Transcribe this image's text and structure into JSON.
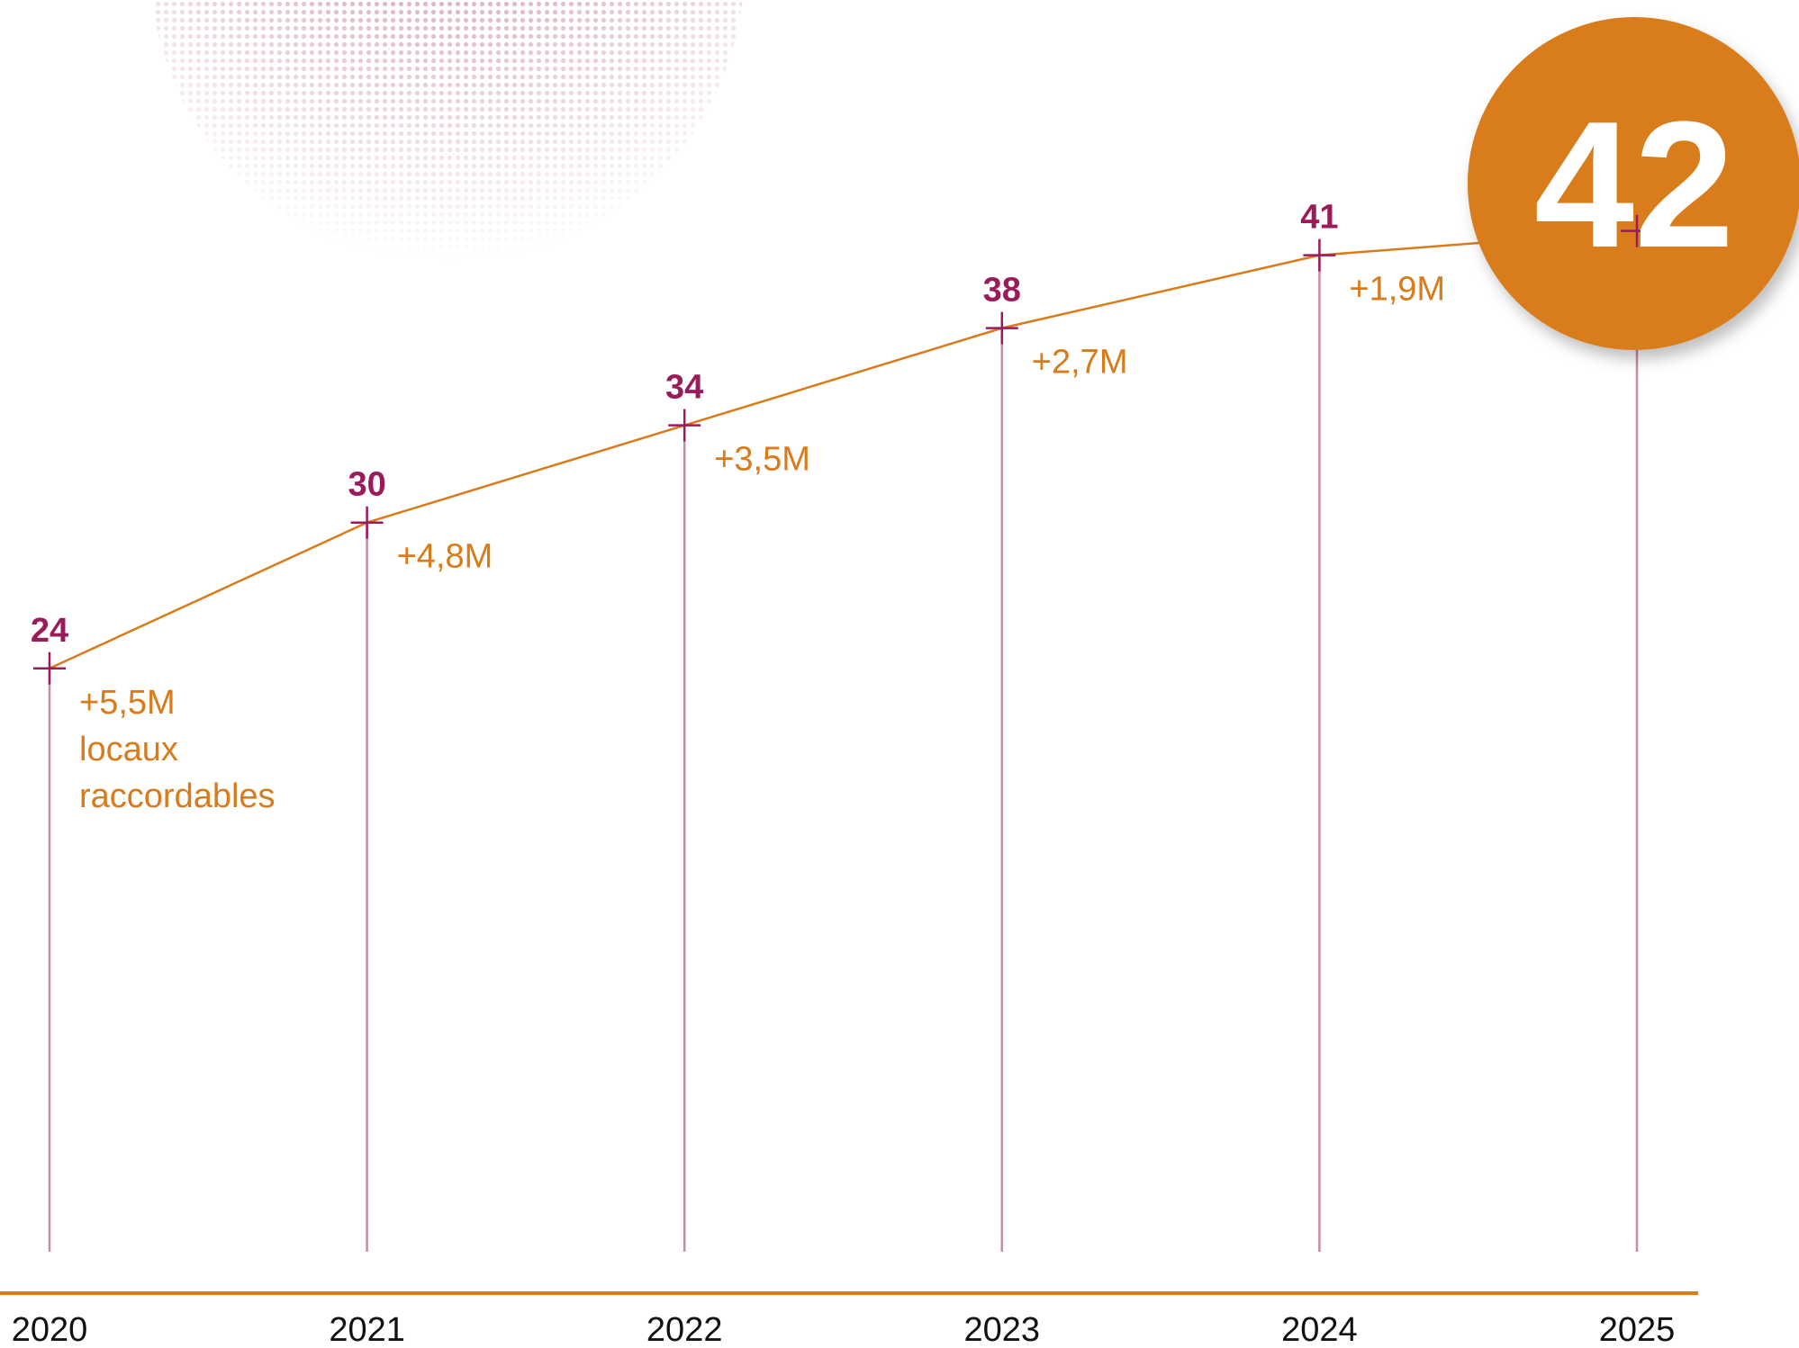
{
  "chart_data": {
    "type": "line",
    "categories": [
      "2020",
      "2021",
      "2022",
      "2023",
      "2024",
      "2025"
    ],
    "values": [
      24,
      30,
      34,
      38,
      41,
      42
    ],
    "annotations": [
      "+5,5M",
      "+4,8M",
      "+3,5M",
      "+2,7M",
      "+1,9M"
    ],
    "annotation_note": "locaux raccordables",
    "color": "#d97b1a",
    "marker_color": "#9b1b5a",
    "ylim": [
      0,
      51.5
    ]
  }
}
